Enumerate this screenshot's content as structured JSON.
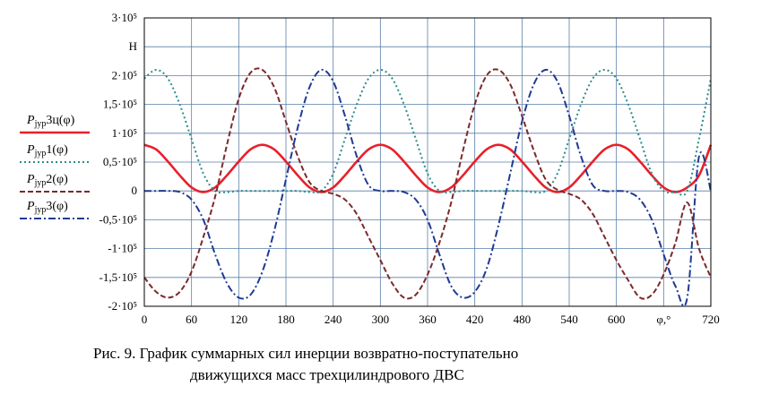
{
  "chart_data": {
    "type": "line",
    "ylabel_unit": "Н",
    "xlabel": "φ,°",
    "xlim": [
      0,
      720
    ],
    "ylim": [
      -200000,
      300000
    ],
    "x_ticks": [
      "0",
      "60",
      "120",
      "180",
      "240",
      "300",
      "360",
      "420",
      "480",
      "540",
      "600",
      "720"
    ],
    "y_ticks": [
      {
        "value": 300000,
        "label": "3·10⁵"
      },
      {
        "value": 250000,
        "label": "Н"
      },
      {
        "value": 200000,
        "label": "2·10⁵"
      },
      {
        "value": 150000,
        "label": "1,5·10⁵"
      },
      {
        "value": 100000,
        "label": "1·10⁵"
      },
      {
        "value": 50000,
        "label": "0,5·10⁵"
      },
      {
        "value": 0,
        "label": "0"
      },
      {
        "value": -50000,
        "label": "-0,5·10⁵"
      },
      {
        "value": -100000,
        "label": "-1·10⁵"
      },
      {
        "value": -150000,
        "label": "-1,5·10⁵"
      },
      {
        "value": -200000,
        "label": "-2·10⁵"
      }
    ],
    "grid": true,
    "legend_position": "left",
    "series": [
      {
        "name_main": "P",
        "name_sub": "jур",
        "name_tail": "3ц(φ)",
        "color": "#e8202a",
        "dash": "solid",
        "x": [
          0,
          15,
          30,
          45,
          60,
          75,
          90,
          105,
          120,
          135,
          150,
          165,
          180,
          195,
          210,
          225,
          240,
          255,
          270,
          285,
          300,
          315,
          330,
          345,
          360,
          375,
          390,
          405,
          420,
          435,
          450,
          465,
          480,
          495,
          510,
          525,
          540,
          555,
          570,
          585,
          600,
          615,
          630,
          645,
          660,
          675,
          690,
          705,
          720
        ],
        "y": [
          80000,
          72000,
          51000,
          27000,
          6000,
          -2000,
          6000,
          27000,
          51000,
          72000,
          80000,
          72000,
          51000,
          27000,
          6000,
          -2000,
          6000,
          27000,
          51000,
          72000,
          80000,
          72000,
          51000,
          27000,
          6000,
          -2000,
          6000,
          27000,
          51000,
          72000,
          80000,
          72000,
          51000,
          27000,
          6000,
          -2000,
          6000,
          27000,
          51000,
          72000,
          80000,
          72000,
          51000,
          27000,
          6000,
          -2000,
          6000,
          27000,
          80000
        ]
      },
      {
        "name_main": "P",
        "name_sub": "jур",
        "name_tail": "1(φ)",
        "color": "#2e8b8b",
        "dash": "2,3",
        "x": [
          0,
          15,
          30,
          45,
          60,
          75,
          90,
          105,
          120,
          135,
          150,
          165,
          180,
          195,
          210,
          225,
          240,
          255,
          270,
          285,
          300,
          315,
          330,
          345,
          360,
          375,
          390,
          405,
          420,
          435,
          450,
          465,
          480,
          495,
          510,
          525,
          540,
          555,
          570,
          585,
          600,
          615,
          630,
          645,
          660,
          675,
          690,
          705,
          720
        ],
        "y": [
          195000,
          210000,
          195000,
          150000,
          90000,
          30000,
          0,
          -2000,
          0,
          0,
          0,
          0,
          0,
          0,
          -2000,
          0,
          30000,
          90000,
          150000,
          195000,
          210000,
          195000,
          150000,
          90000,
          30000,
          0,
          -2000,
          0,
          0,
          0,
          0,
          0,
          0,
          -2000,
          0,
          30000,
          90000,
          150000,
          195000,
          210000,
          195000,
          150000,
          90000,
          30000,
          0,
          -2000,
          0,
          90000,
          195000
        ]
      },
      {
        "name_main": "P",
        "name_sub": "jур",
        "name_tail": "2(φ)",
        "color": "#7b2a2a",
        "dash": "6,3",
        "x": [
          0,
          15,
          30,
          45,
          60,
          75,
          90,
          105,
          120,
          135,
          150,
          165,
          180,
          195,
          210,
          225,
          240,
          255,
          270,
          285,
          300,
          315,
          330,
          345,
          360,
          375,
          390,
          405,
          420,
          435,
          450,
          465,
          480,
          495,
          510,
          525,
          540,
          555,
          570,
          585,
          600,
          615,
          630,
          645,
          660,
          675,
          690,
          705,
          720
        ],
        "y": [
          -150000,
          -175000,
          -185000,
          -175000,
          -140000,
          -80000,
          -10000,
          80000,
          160000,
          205000,
          210000,
          180000,
          120000,
          60000,
          15000,
          0,
          -5000,
          -15000,
          -40000,
          -80000,
          -120000,
          -160000,
          -185000,
          -180000,
          -145000,
          -90000,
          -20000,
          70000,
          150000,
          200000,
          210000,
          185000,
          130000,
          70000,
          20000,
          2000,
          -5000,
          -15000,
          -40000,
          -80000,
          -120000,
          -155000,
          -185000,
          -180000,
          -145000,
          -90000,
          -20000,
          -100000,
          -150000
        ]
      },
      {
        "name_main": "P",
        "name_sub": "jур",
        "name_tail": "3(φ)",
        "color": "#1f3a93",
        "dash": "8,3,2,3",
        "x": [
          0,
          15,
          30,
          45,
          60,
          75,
          90,
          105,
          120,
          135,
          150,
          165,
          180,
          195,
          210,
          225,
          240,
          255,
          270,
          285,
          300,
          315,
          330,
          345,
          360,
          375,
          390,
          405,
          420,
          435,
          450,
          465,
          480,
          495,
          510,
          525,
          540,
          555,
          570,
          585,
          600,
          615,
          630,
          645,
          660,
          675,
          690,
          705,
          720
        ],
        "y": [
          0,
          0,
          0,
          -2000,
          -15000,
          -50000,
          -110000,
          -160000,
          -185000,
          -180000,
          -140000,
          -70000,
          20000,
          110000,
          180000,
          210000,
          190000,
          130000,
          60000,
          10000,
          0,
          0,
          -2000,
          -15000,
          -50000,
          -110000,
          -165000,
          -185000,
          -175000,
          -135000,
          -60000,
          30000,
          120000,
          185000,
          210000,
          190000,
          130000,
          60000,
          10000,
          0,
          0,
          -2000,
          -15000,
          -50000,
          -110000,
          -165000,
          -185000,
          60000,
          0
        ]
      }
    ]
  },
  "caption": {
    "line1": "Рис. 9. График суммарных сил инерции возвратно-поступательно",
    "line2": "движущихся масс трехцилиндрового ДВС"
  }
}
